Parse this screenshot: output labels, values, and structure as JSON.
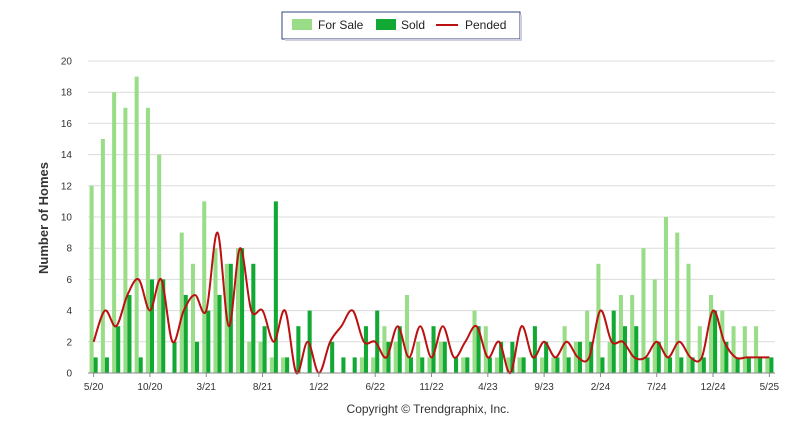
{
  "chart_data": {
    "type": "bar",
    "ylabel": "Number of Homes",
    "ylim": [
      0,
      20
    ],
    "y_ticks": [
      0,
      2,
      4,
      6,
      8,
      10,
      12,
      14,
      16,
      18,
      20
    ],
    "grid": true,
    "legend": {
      "placement": "top-center",
      "entries": [
        "For Sale",
        "Sold",
        "Pended"
      ]
    },
    "x_tick_labels": [
      "5/20",
      "10/20",
      "3/21",
      "8/21",
      "1/22",
      "6/22",
      "11/22",
      "4/23",
      "9/23",
      "2/24",
      "7/24",
      "12/24",
      "5/25"
    ],
    "x_tick_indices": [
      0,
      5,
      10,
      15,
      20,
      25,
      30,
      35,
      40,
      45,
      50,
      55,
      60
    ],
    "series": [
      {
        "name": "For Sale",
        "type": "bar",
        "color": "#99dd88",
        "values": [
          12,
          15,
          18,
          17,
          19,
          17,
          14,
          0,
          9,
          7,
          11,
          8,
          7,
          8,
          2,
          2,
          1,
          1,
          0,
          0,
          0,
          0,
          0,
          0,
          1,
          1,
          3,
          2,
          5,
          2,
          1,
          2,
          0,
          1,
          4,
          3,
          1,
          1,
          1,
          0,
          1,
          1,
          3,
          2,
          4,
          7,
          2,
          5,
          5,
          8,
          6,
          10,
          9,
          7,
          3,
          5,
          4,
          3,
          3,
          3,
          1
        ]
      },
      {
        "name": "Sold",
        "type": "bar",
        "color": "#11a833",
        "values": [
          1,
          1,
          3,
          5,
          1,
          6,
          6,
          2,
          5,
          2,
          4,
          5,
          7,
          8,
          7,
          3,
          11,
          1,
          3,
          4,
          0,
          2,
          1,
          1,
          3,
          4,
          2,
          3,
          1,
          1,
          3,
          2,
          1,
          1,
          3,
          1,
          2,
          2,
          1,
          3,
          2,
          1,
          1,
          2,
          2,
          1,
          4,
          3,
          3,
          1,
          2,
          1,
          1,
          1,
          1,
          4,
          2,
          1,
          1,
          1,
          1
        ]
      },
      {
        "name": "Pended",
        "type": "line",
        "color": "#bb1111",
        "values": [
          2,
          4,
          3,
          5,
          6,
          4,
          6,
          2,
          4,
          5,
          4,
          9,
          3,
          8,
          4,
          4,
          2,
          4,
          0,
          2,
          0,
          2,
          3,
          4,
          2,
          2,
          1,
          3,
          1,
          3,
          1,
          3,
          1,
          2,
          3,
          1,
          2,
          0,
          3,
          1,
          2,
          1,
          2,
          1,
          1,
          4,
          2,
          2,
          1,
          1,
          2,
          1,
          2,
          1,
          1,
          4,
          2,
          1,
          1,
          1,
          1
        ]
      }
    ]
  },
  "footer": {
    "copyright": "Copyright © Trendgraphix, Inc."
  }
}
